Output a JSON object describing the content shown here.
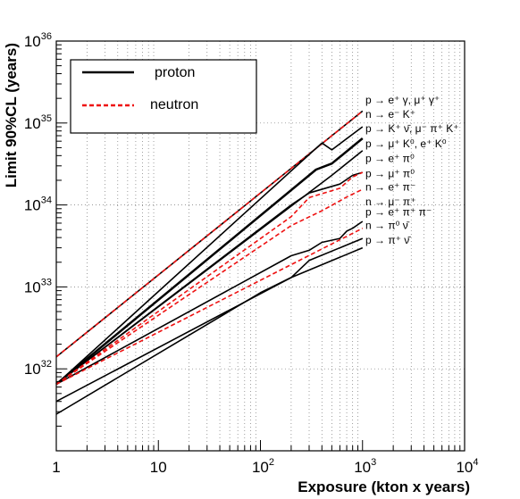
{
  "chart_data": {
    "type": "line",
    "title": "",
    "xlabel": "Exposure (kton x years)",
    "ylabel": "Limit 90%CL (years)",
    "xscale": "log",
    "yscale": "log",
    "xlim": [
      1,
      10000
    ],
    "ylim": [
      1e+31,
      1e+36
    ],
    "grid": true,
    "x_tick_labels": [
      {
        "base": "1",
        "exp": ""
      },
      {
        "base": "10",
        "exp": ""
      },
      {
        "base": "10",
        "exp": "2"
      },
      {
        "base": "10",
        "exp": "3"
      },
      {
        "base": "10",
        "exp": "4"
      }
    ],
    "y_tick_labels": [
      {
        "base": "10",
        "exp": "32"
      },
      {
        "base": "10",
        "exp": "33"
      },
      {
        "base": "10",
        "exp": "34"
      },
      {
        "base": "10",
        "exp": "35"
      },
      {
        "base": "10",
        "exp": "36"
      }
    ],
    "legend": {
      "placement": "top-left",
      "entries": [
        {
          "label": "proton",
          "color": "#000000",
          "style": "solid"
        },
        {
          "label": "neutron",
          "color": "#ee1111",
          "style": "dashed"
        }
      ]
    },
    "channel_labels": [
      {
        "label": "p → e⁺ γ, μ⁺ γ⁺",
        "y": 1.9e+35
      },
      {
        "label": "n → e⁻ K⁺",
        "y": 1.28e+35
      },
      {
        "label": "p → K⁺ ν̄, μ⁻ π⁺ K⁺",
        "y": 8.6e+34
      },
      {
        "label": "p → μ⁺ K⁰, e⁺ K⁰",
        "y": 5.6e+34
      },
      {
        "label": "p → e⁺ π⁰",
        "y": 3.7e+34
      },
      {
        "label": "p → μ⁺ π⁰",
        "y": 2.4e+34
      },
      {
        "label": "n → e⁺ π⁻",
        "y": 1.65e+34
      },
      {
        "label": "n → μ⁻ π⁺",
        "y": 1.1e+34
      },
      {
        "label": "p → e⁺ π⁺ π⁻",
        "y": 8.2e+33
      },
      {
        "label": "n → π⁰ ν̄",
        "y": 5.6e+33
      },
      {
        "label": "p → π⁺ ν̄",
        "y": 3.7e+33
      }
    ],
    "series": [
      {
        "style": "proton",
        "width": 1.6,
        "points": [
          [
            1,
            1.4e+32
          ],
          [
            1000,
            1.4e+35
          ]
        ]
      },
      {
        "style": "neutron",
        "width": 1.6,
        "points": [
          [
            1,
            1.4e+32
          ],
          [
            1000,
            1.4e+35
          ]
        ]
      },
      {
        "style": "proton",
        "width": 1.6,
        "points": [
          [
            1,
            6.5e+31
          ],
          [
            400,
            5.7e+34
          ],
          [
            500,
            4.7e+34
          ],
          [
            1000,
            9e+34
          ]
        ]
      },
      {
        "style": "proton",
        "width": 2.5,
        "points": [
          [
            1,
            6.5e+31
          ],
          [
            350,
            2.7e+34
          ],
          [
            500,
            3.2e+34
          ],
          [
            1000,
            6.5e+34
          ]
        ]
      },
      {
        "style": "proton",
        "width": 1.6,
        "points": [
          [
            1,
            6.5e+31
          ],
          [
            500,
            2.3e+34
          ],
          [
            1000,
            4.6e+34
          ]
        ]
      },
      {
        "style": "proton",
        "width": 1.6,
        "points": [
          [
            1,
            6.5e+31
          ],
          [
            200,
            1e+34
          ],
          [
            300,
            1.4e+34
          ],
          [
            600,
            1.8e+34
          ],
          [
            800,
            2.3e+34
          ],
          [
            1000,
            2.5e+34
          ]
        ]
      },
      {
        "style": "neutron",
        "width": 1.6,
        "points": [
          [
            1,
            6.5e+31
          ],
          [
            200,
            7.2e+33
          ],
          [
            300,
            1.23e+34
          ],
          [
            600,
            1.6e+34
          ],
          [
            800,
            2.2e+34
          ],
          [
            1000,
            2.5e+34
          ]
        ]
      },
      {
        "style": "neutron",
        "width": 1.6,
        "points": [
          [
            1,
            6.5e+31
          ],
          [
            200,
            5.6e+33
          ],
          [
            400,
            8.5e+33
          ],
          [
            700,
            1.25e+34
          ],
          [
            1000,
            1.55e+34
          ]
        ]
      },
      {
        "style": "proton",
        "width": 1.6,
        "points": [
          [
            1,
            6.5e+31
          ],
          [
            200,
            2.4e+33
          ],
          [
            300,
            2.8e+33
          ],
          [
            400,
            3.5e+33
          ],
          [
            600,
            3.9e+33
          ],
          [
            700,
            4.8e+33
          ],
          [
            800,
            5.2e+33
          ],
          [
            1000,
            6.3e+33
          ]
        ]
      },
      {
        "style": "neutron",
        "width": 1.6,
        "points": [
          [
            1,
            6.5e+31
          ],
          [
            1000,
            5.2e+33
          ]
        ]
      },
      {
        "style": "proton",
        "width": 1.6,
        "points": [
          [
            1,
            4e+31
          ],
          [
            200,
            1.3e+33
          ],
          [
            300,
            2.1e+33
          ],
          [
            1000,
            3.9e+33
          ]
        ]
      },
      {
        "style": "proton",
        "width": 1.6,
        "points": [
          [
            1,
            2.8e+31
          ],
          [
            100,
            8.5e+32
          ],
          [
            200,
            1.3e+33
          ],
          [
            1000,
            3e+33
          ]
        ]
      }
    ]
  }
}
